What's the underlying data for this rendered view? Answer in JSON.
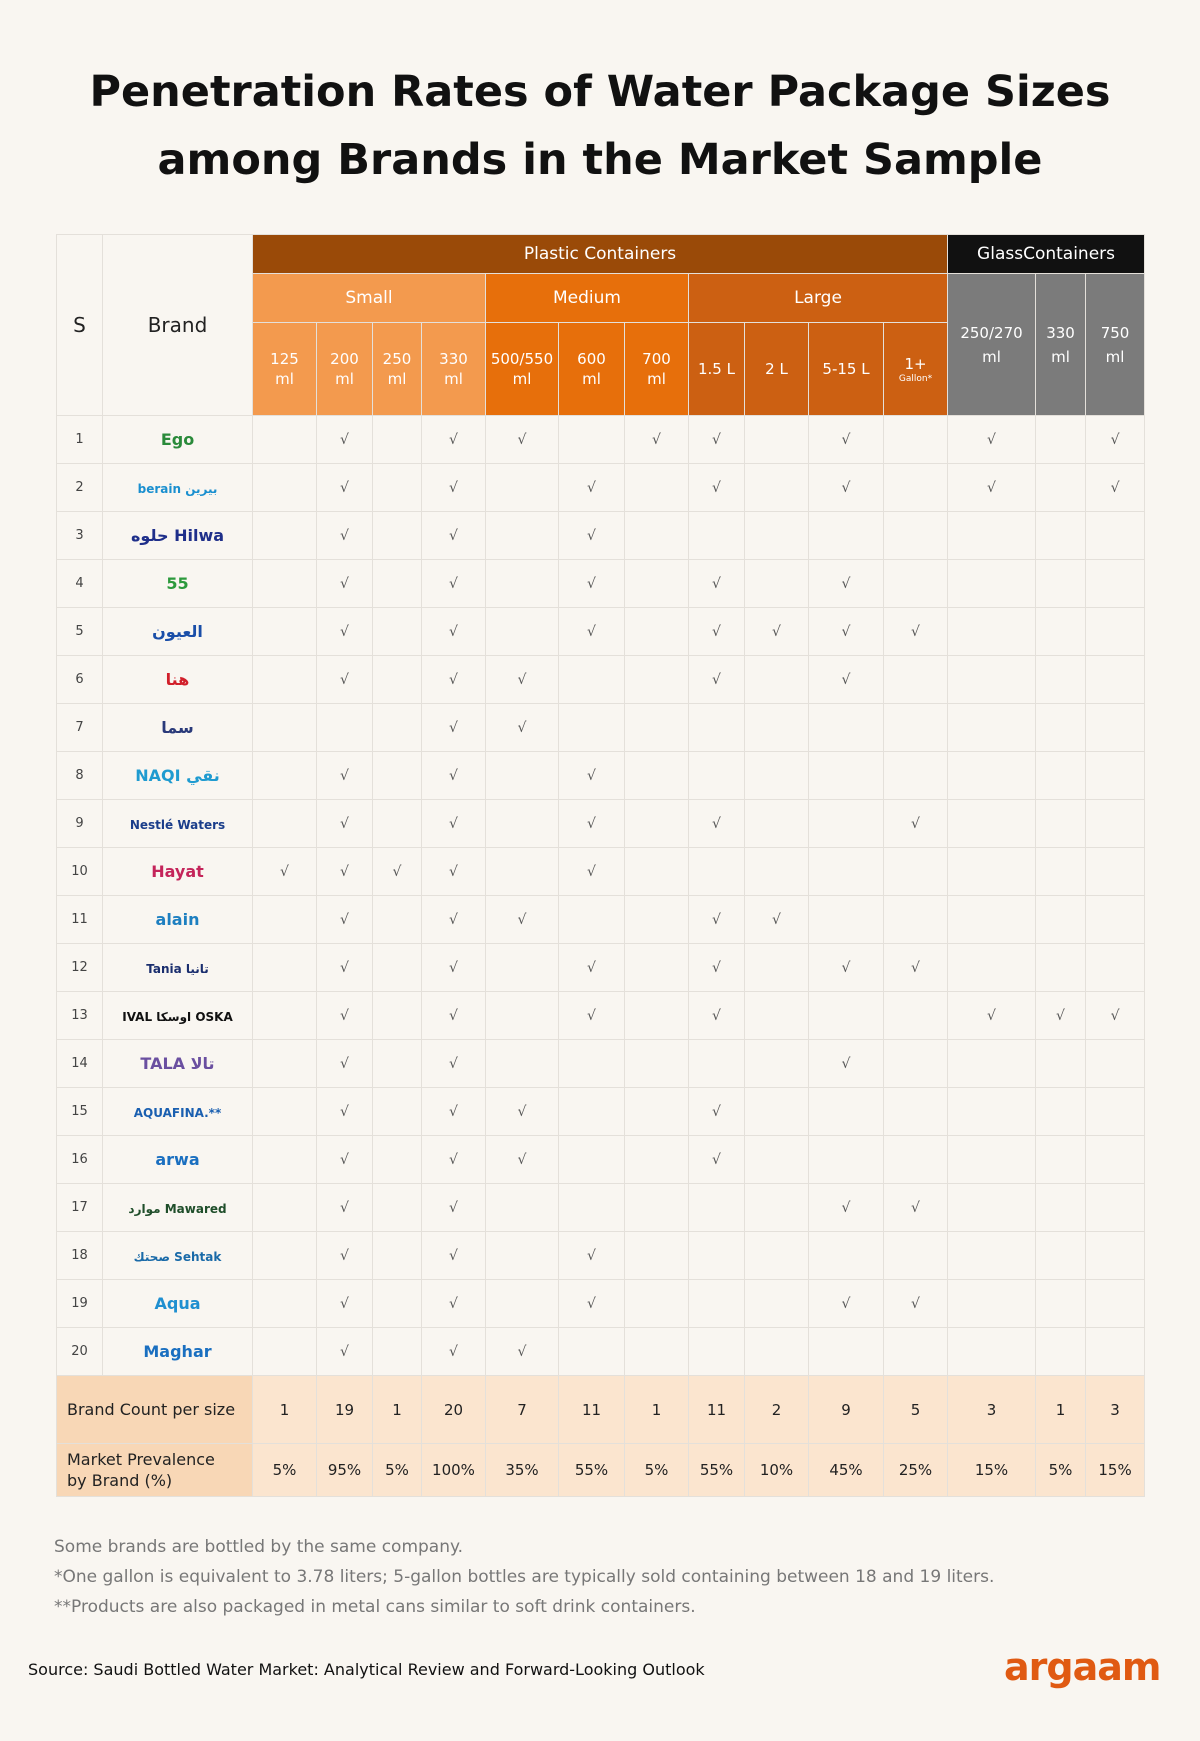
{
  "title": {
    "line1": "Penetration Rates of Water Package Sizes",
    "line2": "among Brands in the Market Sample"
  },
  "headers": {
    "s": "S",
    "brand": "Brand",
    "plastic": "Plastic Containers",
    "glass": "GlassContainers",
    "small": "Small",
    "medium": "Medium",
    "large": "Large",
    "sizes": [
      {
        "l1": "125",
        "l2": "ml"
      },
      {
        "l1": "200",
        "l2": "ml"
      },
      {
        "l1": "250",
        "l2": "ml"
      },
      {
        "l1": "330",
        "l2": "ml"
      },
      {
        "l1": "500/550",
        "l2": "ml"
      },
      {
        "l1": "600",
        "l2": "ml"
      },
      {
        "l1": "700",
        "l2": "ml"
      },
      {
        "l1": "1.5 L",
        "l2": ""
      },
      {
        "l1": "2 L",
        "l2": ""
      },
      {
        "l1": "5-15 L",
        "l2": ""
      },
      {
        "l1": "1+",
        "l2": "Gallon*"
      },
      {
        "l1": "250/270",
        "l2": "ml"
      },
      {
        "l1": "330",
        "l2": "ml"
      },
      {
        "l1": "750",
        "l2": "ml"
      }
    ]
  },
  "check_symbol": "√",
  "rows": [
    {
      "n": "1",
      "logo": "Ego",
      "logo_color": "#2a8a3a",
      "checks": [
        0,
        1,
        0,
        1,
        1,
        0,
        1,
        1,
        0,
        1,
        0,
        1,
        0,
        1
      ]
    },
    {
      "n": "2",
      "logo": "berain بيرين",
      "logo_color": "#1a8fcf",
      "checks": [
        0,
        1,
        0,
        1,
        0,
        1,
        0,
        1,
        0,
        1,
        0,
        1,
        0,
        1
      ]
    },
    {
      "n": "3",
      "logo": "حلوه Hilwa",
      "logo_color": "#1f2f8a",
      "checks": [
        0,
        1,
        0,
        1,
        0,
        1,
        0,
        0,
        0,
        0,
        0,
        0,
        0,
        0
      ]
    },
    {
      "n": "4",
      "logo": "55",
      "logo_color": "#2d9a3d",
      "checks": [
        0,
        1,
        0,
        1,
        0,
        1,
        0,
        1,
        0,
        1,
        0,
        0,
        0,
        0
      ]
    },
    {
      "n": "5",
      "logo": "العيون",
      "logo_color": "#1a4ea8",
      "checks": [
        0,
        1,
        0,
        1,
        0,
        1,
        0,
        1,
        1,
        1,
        1,
        0,
        0,
        0
      ]
    },
    {
      "n": "6",
      "logo": "هنا",
      "logo_color": "#d11f2a",
      "checks": [
        0,
        1,
        0,
        1,
        1,
        0,
        0,
        1,
        0,
        1,
        0,
        0,
        0,
        0
      ]
    },
    {
      "n": "7",
      "logo": "سما",
      "logo_color": "#2a3a7a",
      "checks": [
        0,
        0,
        0,
        1,
        1,
        0,
        0,
        0,
        0,
        0,
        0,
        0,
        0,
        0
      ]
    },
    {
      "n": "8",
      "logo": "NAQI نقي",
      "logo_color": "#1f9bd0",
      "checks": [
        0,
        1,
        0,
        1,
        0,
        1,
        0,
        0,
        0,
        0,
        0,
        0,
        0,
        0
      ]
    },
    {
      "n": "9",
      "logo": "Nestlé Waters",
      "logo_color": "#1a3d8a",
      "checks": [
        0,
        1,
        0,
        1,
        0,
        1,
        0,
        1,
        0,
        0,
        1,
        0,
        0,
        0
      ]
    },
    {
      "n": "10",
      "logo": "Hayat",
      "logo_color": "#c4245a",
      "checks": [
        1,
        1,
        1,
        1,
        0,
        1,
        0,
        0,
        0,
        0,
        0,
        0,
        0,
        0
      ]
    },
    {
      "n": "11",
      "logo": "alain",
      "logo_color": "#1d7fc0",
      "checks": [
        0,
        1,
        0,
        1,
        1,
        0,
        0,
        1,
        1,
        0,
        0,
        0,
        0,
        0
      ]
    },
    {
      "n": "12",
      "logo": "Tania تانيا",
      "logo_color": "#1a2e6e",
      "checks": [
        0,
        1,
        0,
        1,
        0,
        1,
        0,
        1,
        0,
        1,
        1,
        0,
        0,
        0
      ]
    },
    {
      "n": "13",
      "logo": "IVAL اوسكا OSKA",
      "logo_color": "#111111",
      "checks": [
        0,
        1,
        0,
        1,
        0,
        1,
        0,
        1,
        0,
        0,
        0,
        1,
        1,
        1
      ]
    },
    {
      "n": "14",
      "logo": "TALA تالا",
      "logo_color": "#6a4fa0",
      "checks": [
        0,
        1,
        0,
        1,
        0,
        0,
        0,
        0,
        0,
        1,
        0,
        0,
        0,
        0
      ]
    },
    {
      "n": "15",
      "logo": "AQUAFINA.**",
      "logo_color": "#1a5fb0",
      "checks": [
        0,
        1,
        0,
        1,
        1,
        0,
        0,
        1,
        0,
        0,
        0,
        0,
        0,
        0
      ]
    },
    {
      "n": "16",
      "logo": "arwa",
      "logo_color": "#1a6fc0",
      "checks": [
        0,
        1,
        0,
        1,
        1,
        0,
        0,
        1,
        0,
        0,
        0,
        0,
        0,
        0
      ]
    },
    {
      "n": "17",
      "logo": "موارد Mawared",
      "logo_color": "#1f4e2a",
      "checks": [
        0,
        1,
        0,
        1,
        0,
        0,
        0,
        0,
        0,
        1,
        1,
        0,
        0,
        0
      ]
    },
    {
      "n": "18",
      "logo": "صحتك Sehtak",
      "logo_color": "#1a6aa8",
      "checks": [
        0,
        1,
        0,
        1,
        0,
        1,
        0,
        0,
        0,
        0,
        0,
        0,
        0,
        0
      ]
    },
    {
      "n": "19",
      "logo": "Aqua",
      "logo_color": "#1f8fd0",
      "checks": [
        0,
        1,
        0,
        1,
        0,
        1,
        0,
        0,
        0,
        1,
        1,
        0,
        0,
        0
      ]
    },
    {
      "n": "20",
      "logo": "Maghar",
      "logo_color": "#1a6fc0",
      "checks": [
        0,
        1,
        0,
        1,
        1,
        0,
        0,
        0,
        0,
        0,
        0,
        0,
        0,
        0
      ]
    }
  ],
  "summary": {
    "count_label": "Brand Count per size",
    "counts": [
      "1",
      "19",
      "1",
      "20",
      "7",
      "11",
      "1",
      "11",
      "2",
      "9",
      "5",
      "3",
      "1",
      "3"
    ],
    "prev_label_1": "Market Prevalence",
    "prev_label_2": "by Brand (%)",
    "prevalence": [
      "5%",
      "95%",
      "5%",
      "100%",
      "35%",
      "55%",
      "5%",
      "55%",
      "10%",
      "45%",
      "25%",
      "15%",
      "5%",
      "15%"
    ]
  },
  "notes": [
    "Some brands are bottled by the same company.",
    "*One gallon is equivalent to 3.78 liters; 5-gallon bottles are typically sold containing between 18 and 19 liters.",
    "**Products are also packaged in metal cans similar to soft drink containers."
  ],
  "source": "Source: Saudi Bottled Water Market: Analytical Review and Forward-Looking Outlook",
  "brand": "argaam",
  "colors": {
    "plastic": "#9a4a08",
    "small": "#f39a4e",
    "medium": "#e76f0b",
    "large": "#cc6012",
    "glass": "#111111",
    "glass_sub": "#7b7b7b",
    "summary": "#fbe5cf",
    "brand": "#e05a12"
  }
}
